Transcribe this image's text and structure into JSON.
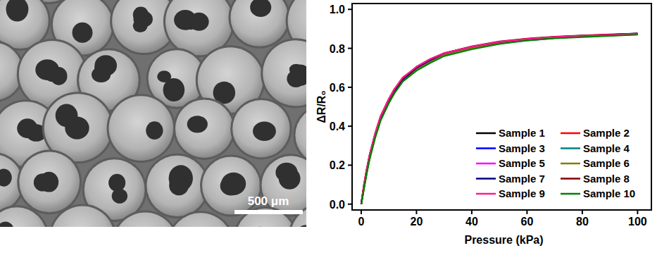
{
  "image": {
    "scale_bar": "500 μm"
  },
  "chart_data": {
    "type": "line",
    "x_label": "Pressure (kPa)",
    "y_label": "ΔR/R₀",
    "x": [
      0,
      1,
      2,
      3,
      5,
      7,
      10,
      12,
      15,
      20,
      25,
      30,
      40,
      50,
      60,
      70,
      80,
      90,
      100
    ],
    "series": [
      {
        "name": "Sample 1",
        "color": "#000000",
        "values": [
          0,
          0.09,
          0.17,
          0.24,
          0.35,
          0.44,
          0.53,
          0.58,
          0.64,
          0.7,
          0.74,
          0.77,
          0.805,
          0.83,
          0.845,
          0.855,
          0.862,
          0.868,
          0.874
        ]
      },
      {
        "name": "Sample 2",
        "color": "#ff0000",
        "values": [
          0,
          0.1,
          0.18,
          0.25,
          0.36,
          0.45,
          0.54,
          0.59,
          0.65,
          0.7,
          0.74,
          0.77,
          0.8,
          0.83,
          0.845,
          0.855,
          0.862,
          0.868,
          0.873
        ]
      },
      {
        "name": "Sample 3",
        "color": "#0000ff",
        "values": [
          0,
          0.09,
          0.17,
          0.24,
          0.35,
          0.44,
          0.53,
          0.58,
          0.64,
          0.7,
          0.74,
          0.77,
          0.8,
          0.83,
          0.845,
          0.855,
          0.863,
          0.87,
          0.876
        ]
      },
      {
        "name": "Sample 4",
        "color": "#008080",
        "values": [
          0,
          0.08,
          0.16,
          0.23,
          0.34,
          0.43,
          0.52,
          0.57,
          0.63,
          0.69,
          0.73,
          0.765,
          0.8,
          0.825,
          0.84,
          0.853,
          0.86,
          0.866,
          0.872
        ]
      },
      {
        "name": "Sample 5",
        "color": "#ff00ff",
        "values": [
          0,
          0.09,
          0.17,
          0.24,
          0.35,
          0.44,
          0.53,
          0.58,
          0.64,
          0.695,
          0.735,
          0.77,
          0.805,
          0.83,
          0.845,
          0.856,
          0.863,
          0.869,
          0.875
        ]
      },
      {
        "name": "Sample 6",
        "color": "#808000",
        "values": [
          0,
          0.08,
          0.16,
          0.23,
          0.34,
          0.43,
          0.52,
          0.57,
          0.63,
          0.69,
          0.73,
          0.765,
          0.8,
          0.826,
          0.842,
          0.853,
          0.86,
          0.866,
          0.871
        ]
      },
      {
        "name": "Sample 7",
        "color": "#000080",
        "values": [
          0,
          0.09,
          0.17,
          0.24,
          0.35,
          0.44,
          0.53,
          0.58,
          0.64,
          0.7,
          0.74,
          0.775,
          0.808,
          0.832,
          0.848,
          0.858,
          0.865,
          0.87,
          0.876
        ]
      },
      {
        "name": "Sample 8",
        "color": "#800000",
        "values": [
          0,
          0.1,
          0.18,
          0.25,
          0.36,
          0.45,
          0.54,
          0.59,
          0.645,
          0.705,
          0.745,
          0.775,
          0.81,
          0.835,
          0.85,
          0.86,
          0.866,
          0.871,
          0.876
        ]
      },
      {
        "name": "Sample 9",
        "color": "#ff1a8c",
        "values": [
          0,
          0.1,
          0.18,
          0.25,
          0.36,
          0.45,
          0.54,
          0.59,
          0.65,
          0.705,
          0.745,
          0.775,
          0.808,
          0.833,
          0.848,
          0.858,
          0.864,
          0.869,
          0.874
        ]
      },
      {
        "name": "Sample 10",
        "color": "#008000",
        "values": [
          0,
          0.08,
          0.16,
          0.23,
          0.34,
          0.43,
          0.52,
          0.57,
          0.63,
          0.685,
          0.725,
          0.76,
          0.795,
          0.822,
          0.84,
          0.851,
          0.858,
          0.864,
          0.87
        ]
      }
    ],
    "xlim": [
      -3.3,
      105
    ],
    "xticks": [
      0,
      20,
      40,
      60,
      80,
      100
    ],
    "ylim": [
      -0.03,
      1.03
    ],
    "yticks": [
      {
        "value": 0,
        "label": "0.0"
      },
      {
        "value": 0.2,
        "label": "0.2"
      },
      {
        "value": 0.4,
        "label": "0.4"
      },
      {
        "value": 0.6,
        "label": "0.6"
      },
      {
        "value": 0.8,
        "label": "0.8"
      },
      {
        "value": 1,
        "label": "1.0"
      }
    ],
    "grid": false,
    "legend": "lower right"
  }
}
